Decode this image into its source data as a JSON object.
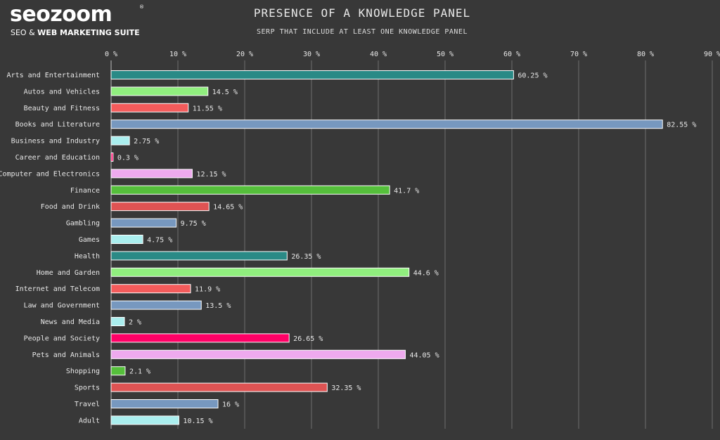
{
  "logo": {
    "main": "seozoom",
    "reg": "®",
    "sub_plain": "SEO & ",
    "sub_bold": "WEB MARKETING SUITE"
  },
  "chart_data": {
    "type": "bar",
    "orientation": "horizontal",
    "title": "PRESENCE OF A KNOWLEDGE PANEL",
    "subtitle": "SERP THAT INCLUDE AT LEAST ONE KNOWLEDGE PANEL",
    "xlim": [
      0,
      90
    ],
    "ticks": [
      0,
      10,
      20,
      30,
      40,
      50,
      60,
      70,
      80,
      90
    ],
    "tick_suffix": " %",
    "grid": true,
    "categories": [
      "Arts and Entertainment",
      "Autos and Vehicles",
      "Beauty and Fitness",
      "Books and Literature",
      "Business and Industry",
      "Career and Education",
      "Computer and Electronics",
      "Finance",
      "Food and Drink",
      "Gambling",
      "Games",
      "Health",
      "Home and Garden",
      "Internet and Telecom",
      "Law and Government",
      "News and Media",
      "People and Society",
      "Pets and Animals",
      "Shopping",
      "Sports",
      "Travel",
      "Adult"
    ],
    "values": [
      60.25,
      14.5,
      11.55,
      82.55,
      2.75,
      0.3,
      12.15,
      41.7,
      14.65,
      9.75,
      4.75,
      26.35,
      44.6,
      11.9,
      13.5,
      2,
      26.65,
      44.05,
      2.1,
      32.35,
      16,
      10.15
    ],
    "value_labels": [
      "60.25 %",
      "14.5 %",
      "11.55 %",
      "82.55 %",
      "2.75 %",
      "0.3 %",
      "12.15 %",
      "41.7 %",
      "14.65 %",
      "9.75 %",
      "4.75 %",
      "26.35 %",
      "44.6 %",
      "11.9 %",
      "13.5 %",
      "2 %",
      "26.65 %",
      "44.05 %",
      "2.1 %",
      "32.35 %",
      "16 %",
      "10.15 %"
    ],
    "colors": [
      "#2a8a86",
      "#90ee7e",
      "#f45b5b",
      "#7798bf",
      "#aaeeee",
      "#ff0066",
      "#eeaaee",
      "#55bf3b",
      "#df5353",
      "#7798bf",
      "#aaeeee",
      "#2a8a86",
      "#90ee7e",
      "#f45b5b",
      "#7798bf",
      "#aaeeee",
      "#ff0066",
      "#eeaaee",
      "#55bf3b",
      "#df5353",
      "#7798bf",
      "#aaeeee"
    ]
  }
}
